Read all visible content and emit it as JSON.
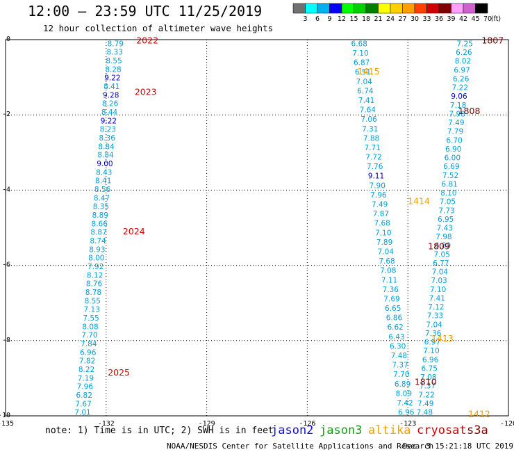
{
  "title": "12:00 – 23:59 UTC 11/25/2019",
  "subtitle": "12 hour collection of altimeter wave heights",
  "note": "note: 1) Time is in UTC; 2) SWH is in feet",
  "credit": "NOAA/NESDIS Center for Satellite Applications and Research",
  "credit_date": "Dec  3 15:21:18 UTC 2019",
  "satellites": [
    {
      "name": "jason2",
      "color": "#1010d0"
    },
    {
      "name": "jason3",
      "color": "#10a010"
    },
    {
      "name": "altika",
      "color": "#f0a000"
    },
    {
      "name": "cryosat",
      "color": "#d00000"
    },
    {
      "name": "s3a",
      "color": "#800000"
    }
  ],
  "colorbar": {
    "unit": "(ft)",
    "colors": [
      "#707070",
      "#00ffff",
      "#00b0f0",
      "#0000ff",
      "#00ff00",
      "#00d000",
      "#008000",
      "#ffff00",
      "#ffd000",
      "#ffa000",
      "#ff4000",
      "#d00000",
      "#800000",
      "#ffa0ff",
      "#d060d0",
      "#000000"
    ],
    "labels": [
      "3",
      "6",
      "9",
      "12",
      "15",
      "18",
      "21",
      "24",
      "27",
      "30",
      "33",
      "36",
      "39",
      "42",
      "45",
      "70"
    ]
  },
  "chart_data": {
    "type": "scatter",
    "xlabel": "",
    "ylabel": "",
    "xlim": [
      -135,
      -120
    ],
    "ylim": [
      -10,
      0
    ],
    "x_ticks": [
      "-135",
      "-132",
      "-129",
      "-126",
      "-123",
      "-120"
    ],
    "y_ticks": [
      "0",
      "-2",
      "-4",
      "-6",
      "-8",
      "-10"
    ],
    "grid": true,
    "tracks": [
      {
        "lon": -131.72,
        "lat_start": -0.1,
        "lon_end": -132.7,
        "lat_end": -9.9,
        "values": [
          "8.79",
          "8.33",
          "8.55",
          "8.28",
          "9.22",
          "8.41",
          "9.28",
          "8.26",
          "8.44",
          "9.22",
          "8.23",
          "8.36",
          "8.84",
          "8.84",
          "9.00",
          "8.43",
          "8.41",
          "8.56",
          "8.47",
          "8.35",
          "8.89",
          "8.66",
          "8.87",
          "8.74",
          "8.93",
          "8.00",
          "7.92",
          "8.12",
          "8.76",
          "8.78",
          "8.55",
          "7.13",
          "7.55",
          "8.08",
          "7.70",
          "7.84",
          "6.96",
          "7.82",
          "8.22",
          "7.19",
          "7.96",
          "6.82",
          "7.67",
          "7.01"
        ]
      },
      {
        "lon": -124.45,
        "lat_start": -0.1,
        "lon_end": -123.05,
        "lat_end": -9.9,
        "values": [
          "6.68",
          "7.10",
          "6.87",
          "6.51",
          "7.04",
          "6.74",
          "7.41",
          "7.64",
          "7.06",
          "7.31",
          "7.88",
          "7.71",
          "7.72",
          "7.76",
          "9.11",
          "7.90",
          "7.96",
          "7.49",
          "7.87",
          "7.68",
          "7.10",
          "7.89",
          "7.04",
          "7.68",
          "7.08",
          "7.11",
          "7.36",
          "7.69",
          "6.65",
          "6.86",
          "6.62",
          "6.43",
          "6.30",
          "7.48",
          "7.37",
          "7.70",
          "6.89",
          "8.09",
          "7.42",
          "6.96"
        ]
      },
      {
        "lon": -121.3,
        "lat_start": -0.1,
        "lon_end": -122.5,
        "lat_end": -9.9,
        "values": [
          "7.25",
          "6.26",
          "8.02",
          "6.97",
          "6.26",
          "7.22",
          "9.06",
          "7.18",
          "7.98",
          "7.49",
          "7.79",
          "6.70",
          "6.90",
          "6.00",
          "6.69",
          "7.52",
          "6.81",
          "8.10",
          "7.05",
          "7.73",
          "6.95",
          "7.43",
          "7.98",
          "6.89",
          "7.05",
          "6.77",
          "7.04",
          "7.03",
          "7.10",
          "7.41",
          "7.12",
          "7.33",
          "7.04",
          "7.36",
          "6.97",
          "7.10",
          "6.96",
          "6.75",
          "7.08",
          "7.37",
          "7.22",
          "7.49",
          "7.48"
        ]
      }
    ],
    "annotations": [
      {
        "text": "2022",
        "lon": -131.1,
        "lat": -0.03,
        "color": "#d00000"
      },
      {
        "text": "2023",
        "lon": -131.15,
        "lat": -1.4,
        "color": "#d00000"
      },
      {
        "text": "2024",
        "lon": -131.5,
        "lat": -5.1,
        "color": "#d00000"
      },
      {
        "text": "2025",
        "lon": -131.95,
        "lat": -8.85,
        "color": "#d00000"
      },
      {
        "text": "1807",
        "lon": -120.8,
        "lat": -0.03,
        "color": "#800000"
      },
      {
        "text": "1808",
        "lon": -121.5,
        "lat": -1.9,
        "color": "#800000"
      },
      {
        "text": "1809",
        "lon": -122.4,
        "lat": -5.5,
        "color": "#800000"
      },
      {
        "text": "1810",
        "lon": -122.8,
        "lat": -9.1,
        "color": "#800000"
      },
      {
        "text": "1415",
        "lon": -124.5,
        "lat": -0.85,
        "color": "#f0a000"
      },
      {
        "text": "1414",
        "lon": -123.0,
        "lat": -4.3,
        "color": "#f0a000"
      },
      {
        "text": "1413",
        "lon": -122.3,
        "lat": -7.95,
        "color": "#f0a000"
      },
      {
        "text": "1412",
        "lon": -121.2,
        "lat": -9.95,
        "color": "#f0a000"
      }
    ]
  }
}
